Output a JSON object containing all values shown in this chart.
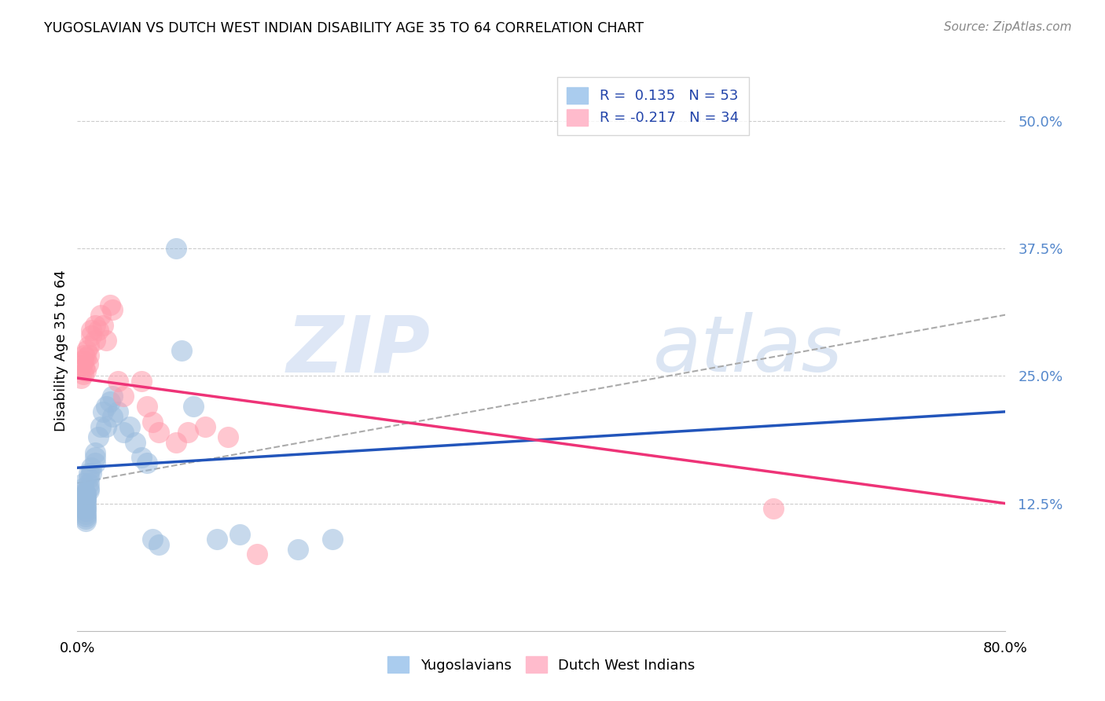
{
  "title": "YUGOSLAVIAN VS DUTCH WEST INDIAN DISABILITY AGE 35 TO 64 CORRELATION CHART",
  "source": "Source: ZipAtlas.com",
  "ylabel": "Disability Age 35 to 64",
  "ytick_labels": [
    "12.5%",
    "25.0%",
    "37.5%",
    "50.0%"
  ],
  "ytick_values": [
    0.125,
    0.25,
    0.375,
    0.5
  ],
  "xlim": [
    0.0,
    0.8
  ],
  "ylim": [
    0.0,
    0.55
  ],
  "blue_color": "#99BBDD",
  "pink_color": "#FF99AA",
  "blue_line_color": "#2255BB",
  "pink_line_color": "#EE3377",
  "gray_dash_color": "#AAAAAA",
  "ytick_color": "#5588CC",
  "yugoslavian_x": [
    0.005,
    0.005,
    0.005,
    0.005,
    0.005,
    0.005,
    0.005,
    0.007,
    0.007,
    0.007,
    0.007,
    0.007,
    0.007,
    0.007,
    0.007,
    0.007,
    0.007,
    0.007,
    0.007,
    0.007,
    0.01,
    0.01,
    0.01,
    0.01,
    0.01,
    0.012,
    0.012,
    0.015,
    0.015,
    0.015,
    0.018,
    0.02,
    0.022,
    0.025,
    0.025,
    0.028,
    0.03,
    0.03,
    0.035,
    0.04,
    0.045,
    0.05,
    0.055,
    0.06,
    0.065,
    0.07,
    0.085,
    0.09,
    0.1,
    0.12,
    0.14,
    0.19,
    0.22
  ],
  "yugoslavian_y": [
    0.13,
    0.135,
    0.14,
    0.145,
    0.13,
    0.125,
    0.12,
    0.135,
    0.13,
    0.125,
    0.12,
    0.115,
    0.11,
    0.135,
    0.13,
    0.128,
    0.122,
    0.118,
    0.112,
    0.108,
    0.145,
    0.14,
    0.155,
    0.15,
    0.138,
    0.16,
    0.155,
    0.175,
    0.17,
    0.165,
    0.19,
    0.2,
    0.215,
    0.22,
    0.2,
    0.225,
    0.23,
    0.21,
    0.215,
    0.195,
    0.2,
    0.185,
    0.17,
    0.165,
    0.09,
    0.085,
    0.375,
    0.275,
    0.22,
    0.09,
    0.095,
    0.08,
    0.09
  ],
  "dutch_x": [
    0.003,
    0.004,
    0.005,
    0.005,
    0.006,
    0.006,
    0.007,
    0.007,
    0.008,
    0.009,
    0.01,
    0.01,
    0.012,
    0.012,
    0.015,
    0.015,
    0.018,
    0.02,
    0.022,
    0.025,
    0.028,
    0.03,
    0.035,
    0.04,
    0.055,
    0.06,
    0.065,
    0.07,
    0.085,
    0.095,
    0.11,
    0.13,
    0.155,
    0.6
  ],
  "dutch_y": [
    0.248,
    0.26,
    0.265,
    0.252,
    0.27,
    0.258,
    0.268,
    0.255,
    0.275,
    0.262,
    0.28,
    0.27,
    0.29,
    0.295,
    0.285,
    0.3,
    0.295,
    0.31,
    0.3,
    0.285,
    0.32,
    0.315,
    0.245,
    0.23,
    0.245,
    0.22,
    0.205,
    0.195,
    0.185,
    0.195,
    0.2,
    0.19,
    0.075,
    0.12
  ],
  "blue_line_x": [
    0.0,
    0.8
  ],
  "blue_line_y": [
    0.16,
    0.215
  ],
  "pink_line_x": [
    0.0,
    0.8
  ],
  "pink_line_y": [
    0.248,
    0.125
  ],
  "gray_line_x": [
    0.0,
    0.8
  ],
  "gray_line_y": [
    0.145,
    0.31
  ]
}
